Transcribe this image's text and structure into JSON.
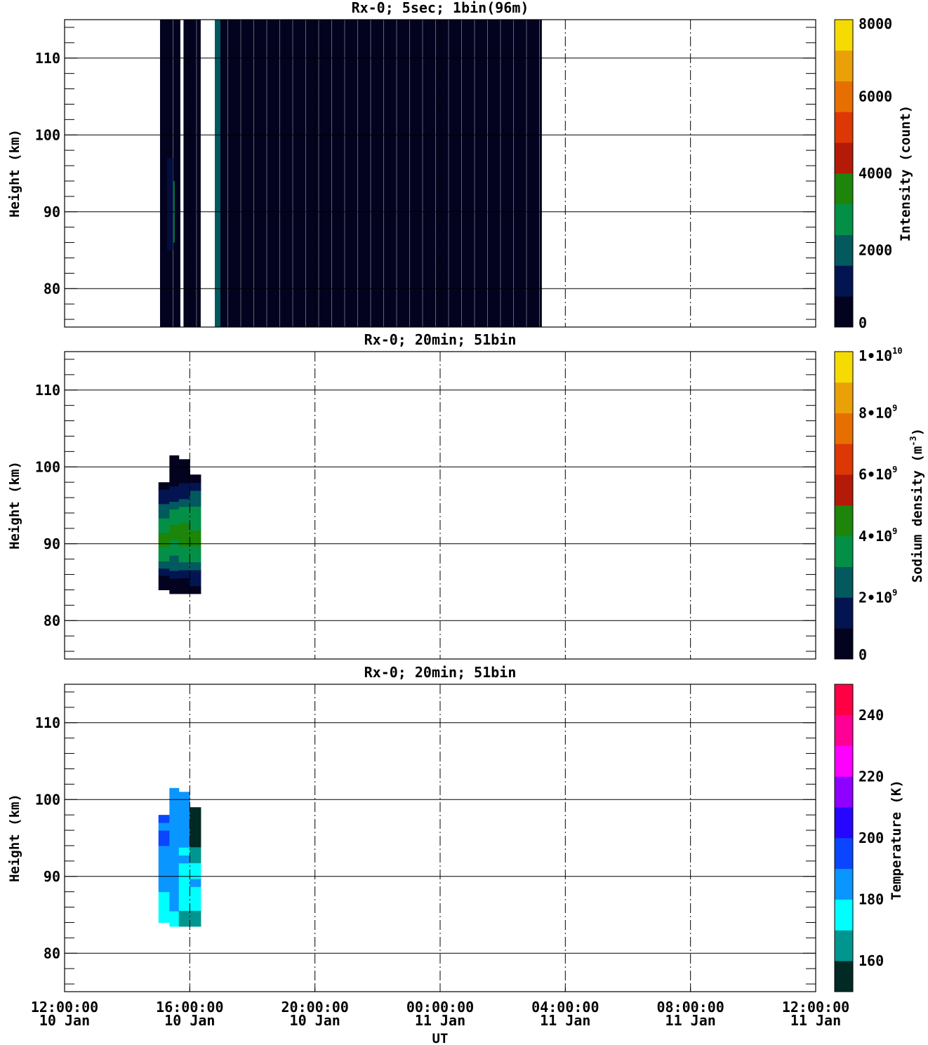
{
  "chart_data": [
    {
      "type": "heatmap",
      "title": "Rx-0;  5sec; 1bin(96m)",
      "ylabel": "Height (km)",
      "xlabel": "",
      "xlim_hours": [
        0,
        48
      ],
      "ylim": [
        75,
        115
      ],
      "yticks": [
        "110",
        "100",
        "90",
        "80"
      ],
      "ytick_values": [
        110,
        100,
        90,
        80
      ],
      "colorbar": {
        "label": "Intensity (count)",
        "ticks": [
          "8000",
          "6000",
          "4000",
          "2000",
          "0"
        ],
        "tick_values": [
          8000,
          6000,
          4000,
          2000,
          0
        ],
        "range": [
          0,
          8000
        ],
        "colors": [
          "#03031f",
          "#031551",
          "#02595e",
          "#039046",
          "#1d8509",
          "#b51907",
          "#dc3704",
          "#e76f02",
          "#eaa107",
          "#f6db03"
        ]
      },
      "data_ranges": [
        {
          "x_start_hours": 6.1,
          "x_end_hours": 7.4
        },
        {
          "x_start_hours": 7.6,
          "x_end_hours": 8.7
        },
        {
          "x_start_hours": 9.6,
          "x_end_hours": 30.5
        }
      ],
      "grid": true
    },
    {
      "type": "heatmap",
      "title": "Rx-0; 20min; 51bin",
      "ylabel": "Height (km)",
      "xlabel": "",
      "xlim_hours": [
        0,
        48
      ],
      "ylim": [
        75,
        115
      ],
      "yticks": [
        "110",
        "100",
        "90",
        "80"
      ],
      "ytick_values": [
        110,
        100,
        90,
        80
      ],
      "colorbar": {
        "label": "Sodium density",
        "unit": "(m",
        "unit_sup": "-3",
        "unit_close": ")",
        "ticks": [
          {
            "m": "1•10",
            "e": "10"
          },
          {
            "m": "8•10",
            "e": "9"
          },
          {
            "m": "6•10",
            "e": "9"
          },
          {
            "m": "4•10",
            "e": "9"
          },
          {
            "m": "2•10",
            "e": "9"
          },
          {
            "m": "0",
            "e": ""
          }
        ],
        "tick_values": [
          10000000000.0,
          8000000000.0,
          6000000000.0,
          4000000000.0,
          2000000000.0,
          0
        ],
        "range": [
          0,
          10000000000.0
        ],
        "colors": [
          "#03031f",
          "#031551",
          "#02595e",
          "#039046",
          "#1d8509",
          "#b51907",
          "#dc3704",
          "#e76f02",
          "#eaa107",
          "#f6db03"
        ]
      },
      "columns": [
        {
          "x_start_hours": 6.0,
          "x_end_hours": 6.7,
          "h_min": 84,
          "h_max": 98,
          "profile": [
            0,
            0,
            1,
            2,
            3,
            3,
            4,
            4,
            3,
            3,
            2,
            2,
            1,
            1,
            0
          ]
        },
        {
          "x_start_hours": 6.7,
          "x_end_hours": 7.3,
          "h_min": 83.5,
          "h_max": 101.5,
          "profile": [
            0,
            0,
            1,
            2,
            2,
            3,
            3,
            4,
            4,
            3,
            3,
            2,
            1,
            1,
            0,
            0,
            0,
            0
          ]
        },
        {
          "x_start_hours": 7.3,
          "x_end_hours": 8.0,
          "h_min": 83.5,
          "h_max": 101,
          "profile": [
            0,
            0,
            1,
            2,
            3,
            3,
            4,
            4,
            4,
            3,
            3,
            2,
            1,
            1,
            0,
            0,
            0
          ]
        },
        {
          "x_start_hours": 8.0,
          "x_end_hours": 8.7,
          "h_min": 83.5,
          "h_max": 99,
          "profile": [
            0,
            1,
            1,
            2,
            3,
            3,
            4,
            4,
            3,
            3,
            3,
            2,
            2,
            1,
            0
          ]
        }
      ],
      "grid": true
    },
    {
      "type": "heatmap",
      "title": "Rx-0; 20min; 51bin",
      "ylabel": "Height (km)",
      "xlabel": "UT",
      "xlim_hours": [
        0,
        48
      ],
      "ylim": [
        75,
        115
      ],
      "yticks": [
        "110",
        "100",
        "90",
        "80"
      ],
      "ytick_values": [
        110,
        100,
        90,
        80
      ],
      "xticks": [
        {
          "time": "12:00:00",
          "date": "10 Jan"
        },
        {
          "time": "16:00:00",
          "date": "10 Jan"
        },
        {
          "time": "20:00:00",
          "date": "10 Jan"
        },
        {
          "time": "00:00:00",
          "date": "11 Jan"
        },
        {
          "time": "04:00:00",
          "date": "11 Jan"
        },
        {
          "time": "08:00:00",
          "date": "11 Jan"
        },
        {
          "time": "12:00:00",
          "date": "11 Jan"
        }
      ],
      "xtick_hours": [
        0,
        8,
        16,
        24,
        32,
        40,
        48
      ],
      "colorbar": {
        "label": "Temperature (K)",
        "ticks": [
          "240",
          "220",
          "200",
          "180",
          "160"
        ],
        "tick_values": [
          240,
          220,
          200,
          180,
          160
        ],
        "range": [
          150,
          250
        ],
        "colors": [
          "#022a24",
          "#00968f",
          "#00ffff",
          "#0a96ff",
          "#0a46ff",
          "#2606ff",
          "#8e00ff",
          "#ff00ff",
          "#ff0096",
          "#ff0044"
        ]
      },
      "columns": [
        {
          "x_start_hours": 6.0,
          "x_end_hours": 6.7,
          "h_min": 84,
          "h_max": 98,
          "profile": [
            2,
            2,
            2,
            2,
            3,
            3,
            3,
            3,
            3,
            3,
            4,
            4,
            3,
            4
          ]
        },
        {
          "x_start_hours": 6.7,
          "x_end_hours": 7.3,
          "h_min": 83.5,
          "h_max": 101.5,
          "profile": [
            2,
            2,
            3,
            3,
            3,
            3,
            3,
            3,
            3,
            3,
            3,
            3,
            3,
            3,
            3,
            3,
            3,
            3
          ]
        },
        {
          "x_start_hours": 7.3,
          "x_end_hours": 8.0,
          "h_min": 83.5,
          "h_max": 101,
          "profile": [
            1,
            1,
            2,
            2,
            2,
            2,
            2,
            2,
            3,
            2,
            3,
            3,
            3,
            3,
            3,
            3,
            3
          ]
        },
        {
          "x_start_hours": 8.0,
          "x_end_hours": 8.7,
          "h_min": 83.5,
          "h_max": 99,
          "profile": [
            1,
            1,
            2,
            2,
            2,
            3,
            2,
            2,
            1,
            1,
            0,
            0,
            0,
            0,
            0
          ]
        }
      ],
      "grid": true
    }
  ]
}
